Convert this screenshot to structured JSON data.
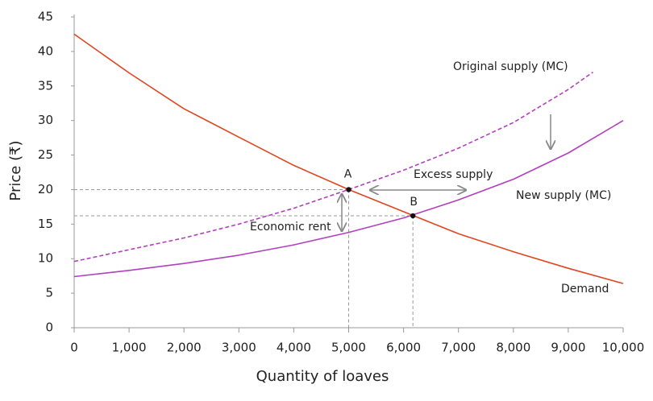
{
  "chart_data": {
    "type": "line",
    "xlabel": "Quantity of loaves",
    "ylabel": "Price (₹)",
    "xlim": [
      0,
      10000
    ],
    "ylim": [
      0,
      45
    ],
    "xticks": [
      0,
      {
        "value": 1000,
        "label": "1,000"
      },
      {
        "value": 2000,
        "label": "2,000"
      },
      {
        "value": 3000,
        "label": "3,000"
      },
      {
        "value": 4000,
        "label": "4,000"
      },
      {
        "value": 5000,
        "label": "5,000"
      },
      {
        "value": 6000,
        "label": "6,000"
      },
      {
        "value": 7000,
        "label": "7,000"
      },
      {
        "value": 8000,
        "label": "8,000"
      },
      {
        "value": 9000,
        "label": "9,000"
      },
      {
        "value": 10000,
        "label": "10,000"
      }
    ],
    "yticks": [
      0,
      5,
      10,
      15,
      20,
      25,
      30,
      35,
      40,
      45
    ],
    "series": [
      {
        "name": "Demand",
        "color": "#e0451f",
        "dashed": false,
        "x": [
          0,
          1000,
          2000,
          3000,
          4000,
          5000,
          6000,
          7000,
          8000,
          9000,
          10000
        ],
        "values": [
          42.5,
          36.9,
          31.7,
          27.6,
          23.5,
          20,
          16.8,
          13.6,
          11,
          8.6,
          6.4
        ]
      },
      {
        "name": "Original supply (MC)",
        "color": "#b23fbe",
        "dashed": true,
        "x": [
          0,
          1000,
          2000,
          3000,
          4000,
          5000,
          6000,
          7000,
          8000,
          9000,
          9450
        ],
        "values": [
          9.6,
          11.3,
          13,
          15,
          17.3,
          20,
          22.8,
          26,
          29.7,
          34.5,
          37
        ]
      },
      {
        "name": "New supply (MC)",
        "color": "#b23fbe",
        "dashed": false,
        "x": [
          0,
          1000,
          2000,
          3000,
          4000,
          5000,
          6000,
          7000,
          8000,
          9000,
          10000
        ],
        "values": [
          7.4,
          8.3,
          9.3,
          10.5,
          12,
          13.8,
          15.9,
          18.5,
          21.5,
          25.3,
          30
        ]
      }
    ],
    "points": [
      {
        "label": "A",
        "x": 5000,
        "y": 20
      },
      {
        "label": "B",
        "x": 6170,
        "y": 16.2
      }
    ],
    "annotations": [
      "Excess supply",
      "Economic rent"
    ]
  }
}
